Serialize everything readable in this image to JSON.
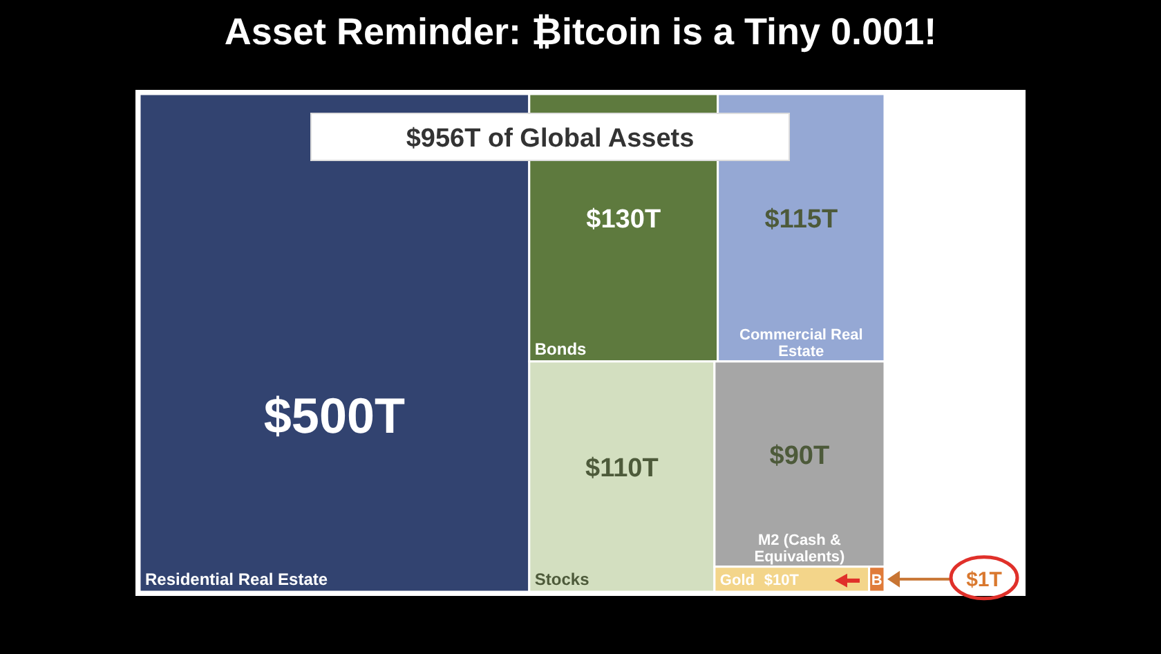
{
  "chart_data": {
    "type": "other",
    "title": "Asset Reminder: ₿itcoin is a Tiny 0.001!",
    "subtitle": "$956T of Global Assets",
    "categories": [
      "Residential Real Estate",
      "Bonds",
      "Commercial Real Estate",
      "Stocks",
      "M2 (Cash & Equivalents)",
      "Gold",
      "B"
    ],
    "values": [
      500,
      130,
      115,
      110,
      90,
      10,
      1
    ],
    "value_labels": [
      "$500T",
      "$130T",
      "$115T",
      "$110T",
      "$90T",
      "$10T",
      "$1T"
    ],
    "colors": [
      "#324370",
      "#5e7a3e",
      "#95a8d4",
      "#d3dfc0",
      "#a6a6a6",
      "#f3d58a",
      "#e07b39"
    ]
  }
}
